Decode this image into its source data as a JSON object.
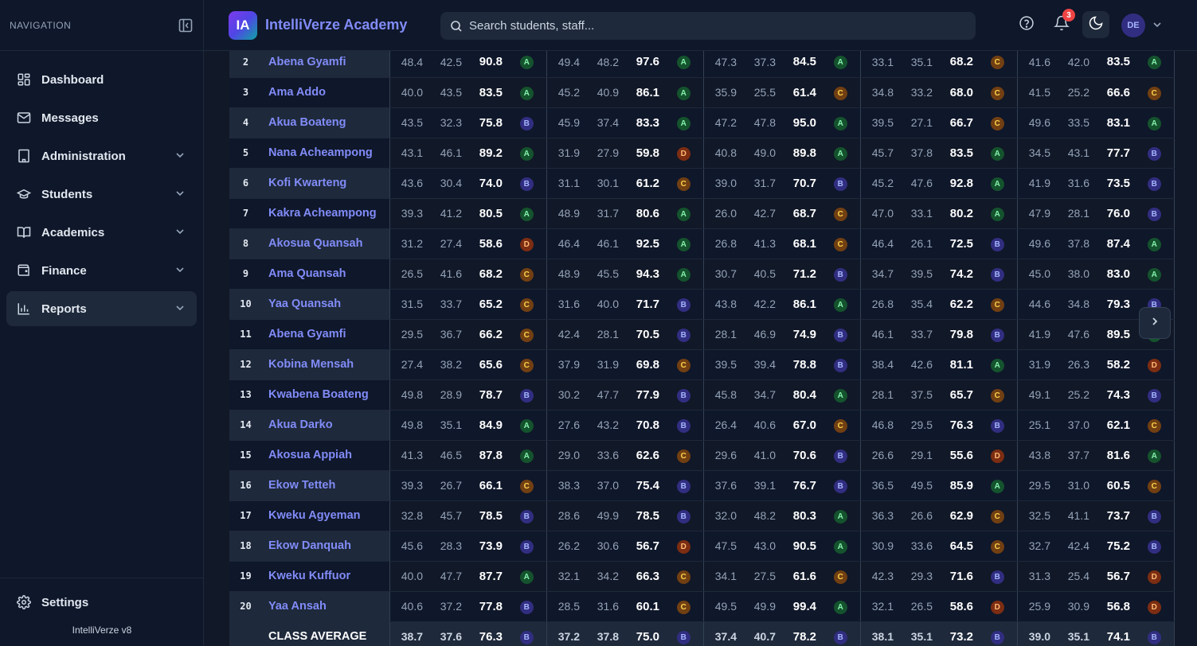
{
  "sidebar": {
    "title": "NAVIGATION",
    "items": [
      {
        "label": "Dashboard",
        "icon": "dashboard-icon",
        "expandable": false,
        "active": false
      },
      {
        "label": "Messages",
        "icon": "mail-icon",
        "expandable": false,
        "active": false
      },
      {
        "label": "Administration",
        "icon": "building-icon",
        "expandable": true,
        "active": false
      },
      {
        "label": "Students",
        "icon": "graduation-cap-icon",
        "expandable": true,
        "active": false
      },
      {
        "label": "Academics",
        "icon": "book-icon",
        "expandable": true,
        "active": false
      },
      {
        "label": "Finance",
        "icon": "wallet-icon",
        "expandable": true,
        "active": false
      },
      {
        "label": "Reports",
        "icon": "bar-chart-icon",
        "expandable": true,
        "active": true
      }
    ],
    "settings_label": "Settings",
    "version": "IntelliVerze v8"
  },
  "header": {
    "logo_text": "IA",
    "app_name": "IntelliVerze Academy",
    "search_placeholder": "Search students, staff...",
    "notification_count": "3",
    "avatar_initials": "DE"
  },
  "table": {
    "rows": [
      {
        "n": "2",
        "name": "Abena Gyamfi",
        "s": [
          [
            "48.4",
            "42.5",
            "90.8",
            "A"
          ],
          [
            "49.4",
            "48.2",
            "97.6",
            "A"
          ],
          [
            "47.3",
            "37.3",
            "84.5",
            "A"
          ],
          [
            "33.1",
            "35.1",
            "68.2",
            "C"
          ],
          [
            "41.6",
            "42.0",
            "83.5",
            "A"
          ]
        ]
      },
      {
        "n": "3",
        "name": "Ama Addo",
        "s": [
          [
            "40.0",
            "43.5",
            "83.5",
            "A"
          ],
          [
            "45.2",
            "40.9",
            "86.1",
            "A"
          ],
          [
            "35.9",
            "25.5",
            "61.4",
            "C"
          ],
          [
            "34.8",
            "33.2",
            "68.0",
            "C"
          ],
          [
            "41.5",
            "25.2",
            "66.6",
            "C"
          ]
        ]
      },
      {
        "n": "4",
        "name": "Akua Boateng",
        "s": [
          [
            "43.5",
            "32.3",
            "75.8",
            "B"
          ],
          [
            "45.9",
            "37.4",
            "83.3",
            "A"
          ],
          [
            "47.2",
            "47.8",
            "95.0",
            "A"
          ],
          [
            "39.5",
            "27.1",
            "66.7",
            "C"
          ],
          [
            "49.6",
            "33.5",
            "83.1",
            "A"
          ]
        ]
      },
      {
        "n": "5",
        "name": "Nana Acheampong",
        "s": [
          [
            "43.1",
            "46.1",
            "89.2",
            "A"
          ],
          [
            "31.9",
            "27.9",
            "59.8",
            "D"
          ],
          [
            "40.8",
            "49.0",
            "89.8",
            "A"
          ],
          [
            "45.7",
            "37.8",
            "83.5",
            "A"
          ],
          [
            "34.5",
            "43.1",
            "77.7",
            "B"
          ]
        ]
      },
      {
        "n": "6",
        "name": "Kofi Kwarteng",
        "s": [
          [
            "43.6",
            "30.4",
            "74.0",
            "B"
          ],
          [
            "31.1",
            "30.1",
            "61.2",
            "C"
          ],
          [
            "39.0",
            "31.7",
            "70.7",
            "B"
          ],
          [
            "45.2",
            "47.6",
            "92.8",
            "A"
          ],
          [
            "41.9",
            "31.6",
            "73.5",
            "B"
          ]
        ]
      },
      {
        "n": "7",
        "name": "Kakra Acheampong",
        "s": [
          [
            "39.3",
            "41.2",
            "80.5",
            "A"
          ],
          [
            "48.9",
            "31.7",
            "80.6",
            "A"
          ],
          [
            "26.0",
            "42.7",
            "68.7",
            "C"
          ],
          [
            "47.0",
            "33.1",
            "80.2",
            "A"
          ],
          [
            "47.9",
            "28.1",
            "76.0",
            "B"
          ]
        ]
      },
      {
        "n": "8",
        "name": "Akosua Quansah",
        "s": [
          [
            "31.2",
            "27.4",
            "58.6",
            "D"
          ],
          [
            "46.4",
            "46.1",
            "92.5",
            "A"
          ],
          [
            "26.8",
            "41.3",
            "68.1",
            "C"
          ],
          [
            "46.4",
            "26.1",
            "72.5",
            "B"
          ],
          [
            "49.6",
            "37.8",
            "87.4",
            "A"
          ]
        ]
      },
      {
        "n": "9",
        "name": "Ama Quansah",
        "s": [
          [
            "26.5",
            "41.6",
            "68.2",
            "C"
          ],
          [
            "48.9",
            "45.5",
            "94.3",
            "A"
          ],
          [
            "30.7",
            "40.5",
            "71.2",
            "B"
          ],
          [
            "34.7",
            "39.5",
            "74.2",
            "B"
          ],
          [
            "45.0",
            "38.0",
            "83.0",
            "A"
          ]
        ]
      },
      {
        "n": "10",
        "name": "Yaa Quansah",
        "s": [
          [
            "31.5",
            "33.7",
            "65.2",
            "C"
          ],
          [
            "31.6",
            "40.0",
            "71.7",
            "B"
          ],
          [
            "43.8",
            "42.2",
            "86.1",
            "A"
          ],
          [
            "26.8",
            "35.4",
            "62.2",
            "C"
          ],
          [
            "44.6",
            "34.8",
            "79.3",
            "B"
          ]
        ]
      },
      {
        "n": "11",
        "name": "Abena Gyamfi",
        "s": [
          [
            "29.5",
            "36.7",
            "66.2",
            "C"
          ],
          [
            "42.4",
            "28.1",
            "70.5",
            "B"
          ],
          [
            "28.1",
            "46.9",
            "74.9",
            "B"
          ],
          [
            "46.1",
            "33.7",
            "79.8",
            "B"
          ],
          [
            "41.9",
            "47.6",
            "89.5",
            "A"
          ]
        ]
      },
      {
        "n": "12",
        "name": "Kobina Mensah",
        "s": [
          [
            "27.4",
            "38.2",
            "65.6",
            "C"
          ],
          [
            "37.9",
            "31.9",
            "69.8",
            "C"
          ],
          [
            "39.5",
            "39.4",
            "78.8",
            "B"
          ],
          [
            "38.4",
            "42.6",
            "81.1",
            "A"
          ],
          [
            "31.9",
            "26.3",
            "58.2",
            "D"
          ]
        ]
      },
      {
        "n": "13",
        "name": "Kwabena Boateng",
        "s": [
          [
            "49.8",
            "28.9",
            "78.7",
            "B"
          ],
          [
            "30.2",
            "47.7",
            "77.9",
            "B"
          ],
          [
            "45.8",
            "34.7",
            "80.4",
            "A"
          ],
          [
            "28.1",
            "37.5",
            "65.7",
            "C"
          ],
          [
            "49.1",
            "25.2",
            "74.3",
            "B"
          ]
        ]
      },
      {
        "n": "14",
        "name": "Akua Darko",
        "s": [
          [
            "49.8",
            "35.1",
            "84.9",
            "A"
          ],
          [
            "27.6",
            "43.2",
            "70.8",
            "B"
          ],
          [
            "26.4",
            "40.6",
            "67.0",
            "C"
          ],
          [
            "46.8",
            "29.5",
            "76.3",
            "B"
          ],
          [
            "25.1",
            "37.0",
            "62.1",
            "C"
          ]
        ]
      },
      {
        "n": "15",
        "name": "Akosua Appiah",
        "s": [
          [
            "41.3",
            "46.5",
            "87.8",
            "A"
          ],
          [
            "29.0",
            "33.6",
            "62.6",
            "C"
          ],
          [
            "29.6",
            "41.0",
            "70.6",
            "B"
          ],
          [
            "26.6",
            "29.1",
            "55.6",
            "D"
          ],
          [
            "43.8",
            "37.7",
            "81.6",
            "A"
          ]
        ]
      },
      {
        "n": "16",
        "name": "Ekow Tetteh",
        "s": [
          [
            "39.3",
            "26.7",
            "66.1",
            "C"
          ],
          [
            "38.3",
            "37.0",
            "75.4",
            "B"
          ],
          [
            "37.6",
            "39.1",
            "76.7",
            "B"
          ],
          [
            "36.5",
            "49.5",
            "85.9",
            "A"
          ],
          [
            "29.5",
            "31.0",
            "60.5",
            "C"
          ]
        ]
      },
      {
        "n": "17",
        "name": "Kweku Agyeman",
        "s": [
          [
            "32.8",
            "45.7",
            "78.5",
            "B"
          ],
          [
            "28.6",
            "49.9",
            "78.5",
            "B"
          ],
          [
            "32.0",
            "48.2",
            "80.3",
            "A"
          ],
          [
            "36.3",
            "26.6",
            "62.9",
            "C"
          ],
          [
            "32.5",
            "41.1",
            "73.7",
            "B"
          ]
        ]
      },
      {
        "n": "18",
        "name": "Ekow Danquah",
        "s": [
          [
            "45.6",
            "28.3",
            "73.9",
            "B"
          ],
          [
            "26.2",
            "30.6",
            "56.7",
            "D"
          ],
          [
            "47.5",
            "43.0",
            "90.5",
            "A"
          ],
          [
            "30.9",
            "33.6",
            "64.5",
            "C"
          ],
          [
            "32.7",
            "42.4",
            "75.2",
            "B"
          ]
        ]
      },
      {
        "n": "19",
        "name": "Kweku Kuffuor",
        "s": [
          [
            "40.0",
            "47.7",
            "87.7",
            "A"
          ],
          [
            "32.1",
            "34.2",
            "66.3",
            "C"
          ],
          [
            "34.1",
            "27.5",
            "61.6",
            "C"
          ],
          [
            "42.3",
            "29.3",
            "71.6",
            "B"
          ],
          [
            "31.3",
            "25.4",
            "56.7",
            "D"
          ]
        ]
      },
      {
        "n": "20",
        "name": "Yaa Ansah",
        "s": [
          [
            "40.6",
            "37.2",
            "77.8",
            "B"
          ],
          [
            "28.5",
            "31.6",
            "60.1",
            "C"
          ],
          [
            "49.5",
            "49.9",
            "99.4",
            "A"
          ],
          [
            "32.1",
            "26.5",
            "58.6",
            "D"
          ],
          [
            "25.9",
            "30.9",
            "56.8",
            "D"
          ]
        ]
      }
    ],
    "average": {
      "label": "CLASS AVERAGE",
      "s": [
        [
          "38.7",
          "37.6",
          "76.3",
          "B"
        ],
        [
          "37.2",
          "37.8",
          "75.0",
          "B"
        ],
        [
          "37.4",
          "40.7",
          "78.2",
          "B"
        ],
        [
          "38.1",
          "35.1",
          "73.2",
          "B"
        ],
        [
          "39.0",
          "35.1",
          "74.1",
          "B"
        ]
      ]
    }
  }
}
